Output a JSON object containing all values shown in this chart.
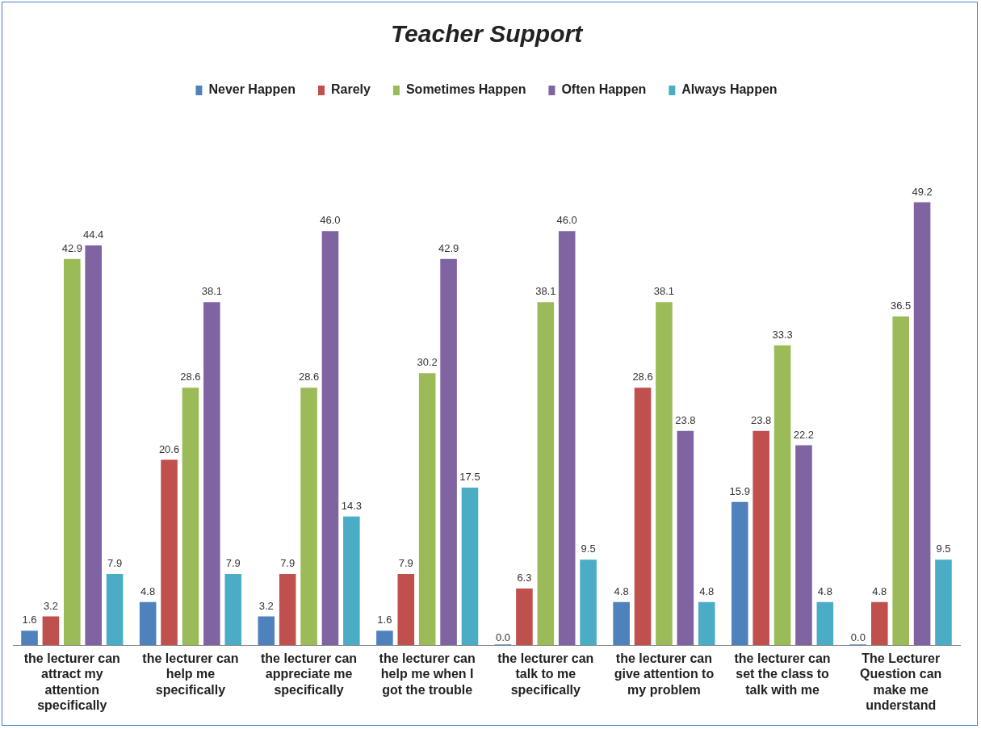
{
  "chart_data": {
    "type": "bar",
    "title": "Teacher Support",
    "categories": [
      "the lecturer can attract my attention specifically",
      "the lecturer can help me specifically",
      "the lecturer can appreciate me specifically",
      "the lecturer can help me when I got the trouble",
      "the lecturer can talk to me specifically",
      "the lecturer can give attention to my problem",
      "the lecturer can set the class to talk with me",
      "The Lecturer Question can make me understand"
    ],
    "series": [
      {
        "name": "Never Happen",
        "color": "#4f81bd",
        "values": [
          1.6,
          4.8,
          3.2,
          1.6,
          0.0,
          4.8,
          15.9,
          0.0
        ],
        "value_labels": [
          "1.6",
          "4.8",
          "3.2",
          "1.6",
          "0.0",
          "4.8",
          "15.9",
          "0.0"
        ]
      },
      {
        "name": "Rarely",
        "color": "#c0504d",
        "values": [
          3.2,
          20.6,
          7.9,
          7.9,
          6.3,
          28.6,
          23.8,
          4.8
        ],
        "value_labels": [
          "3.2",
          "20.6",
          "7.9",
          "7.9",
          "6.3",
          "28.6",
          "23.8",
          "4.8"
        ]
      },
      {
        "name": "Sometimes Happen",
        "color": "#9bbb59",
        "values": [
          42.9,
          28.6,
          28.6,
          30.2,
          38.1,
          38.1,
          33.3,
          36.5
        ],
        "value_labels": [
          "42.9",
          "28.6",
          "28.6",
          "30.2",
          "38.1",
          "38.1",
          "33.3",
          "36.5"
        ]
      },
      {
        "name": "Often Happen",
        "color": "#8064a2",
        "values": [
          44.4,
          38.1,
          46.0,
          42.9,
          46.0,
          23.8,
          22.2,
          49.2
        ],
        "value_labels": [
          "44.4",
          "38.1",
          "46.0",
          "42.9",
          "46.0",
          "23.8",
          "22.2",
          "49.2"
        ]
      },
      {
        "name": "Always Happen",
        "color": "#4bacc6",
        "values": [
          7.9,
          7.9,
          14.3,
          17.5,
          9.5,
          4.8,
          4.8,
          9.5
        ],
        "value_labels": [
          "7.9",
          "7.9",
          "14.3",
          "17.5",
          "9.5",
          "4.8",
          "4.8",
          "9.5"
        ]
      }
    ],
    "legend": "top",
    "grid": false,
    "tick_labels": "x"
  }
}
